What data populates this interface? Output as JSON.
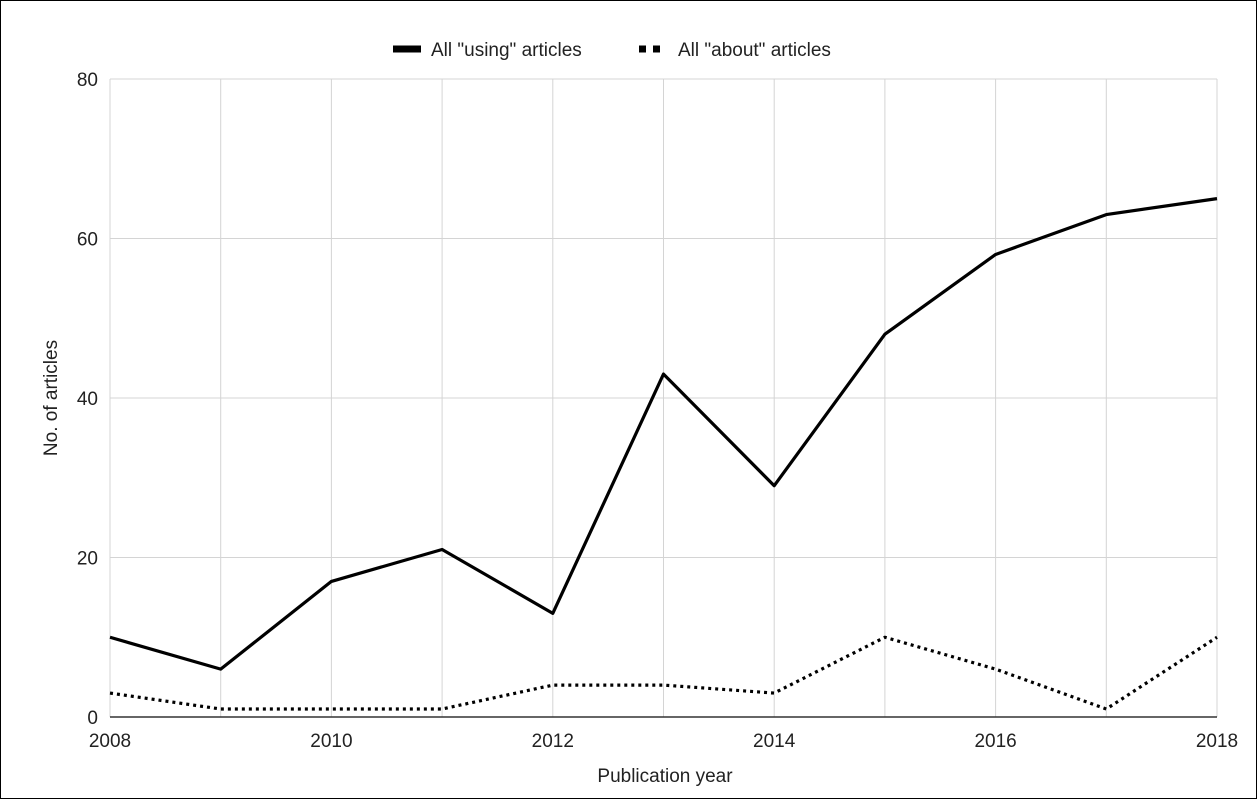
{
  "chart_data": {
    "type": "line",
    "title": "",
    "xlabel": "Publication year",
    "ylabel": "No. of articles",
    "x": [
      2008,
      2009,
      2010,
      2011,
      2012,
      2013,
      2014,
      2015,
      2016,
      2017,
      2018
    ],
    "xticks": [
      "2008",
      "2010",
      "2012",
      "2014",
      "2016",
      "2018"
    ],
    "yticks": [
      "0",
      "20",
      "40",
      "60",
      "80"
    ],
    "xlim": [
      2008,
      2018
    ],
    "ylim": [
      0,
      80
    ],
    "grid": true,
    "legend_position": "top-center",
    "series": [
      {
        "name": "All \"using\" articles",
        "style": "solid",
        "color": "#000000",
        "values": [
          10,
          6,
          17,
          21,
          13,
          43,
          29,
          48,
          58,
          63,
          65
        ]
      },
      {
        "name": "All \"about\" articles",
        "style": "dotted",
        "color": "#000000",
        "values": [
          3,
          1,
          1,
          1,
          4,
          4,
          3,
          10,
          6,
          1,
          10
        ]
      }
    ]
  }
}
